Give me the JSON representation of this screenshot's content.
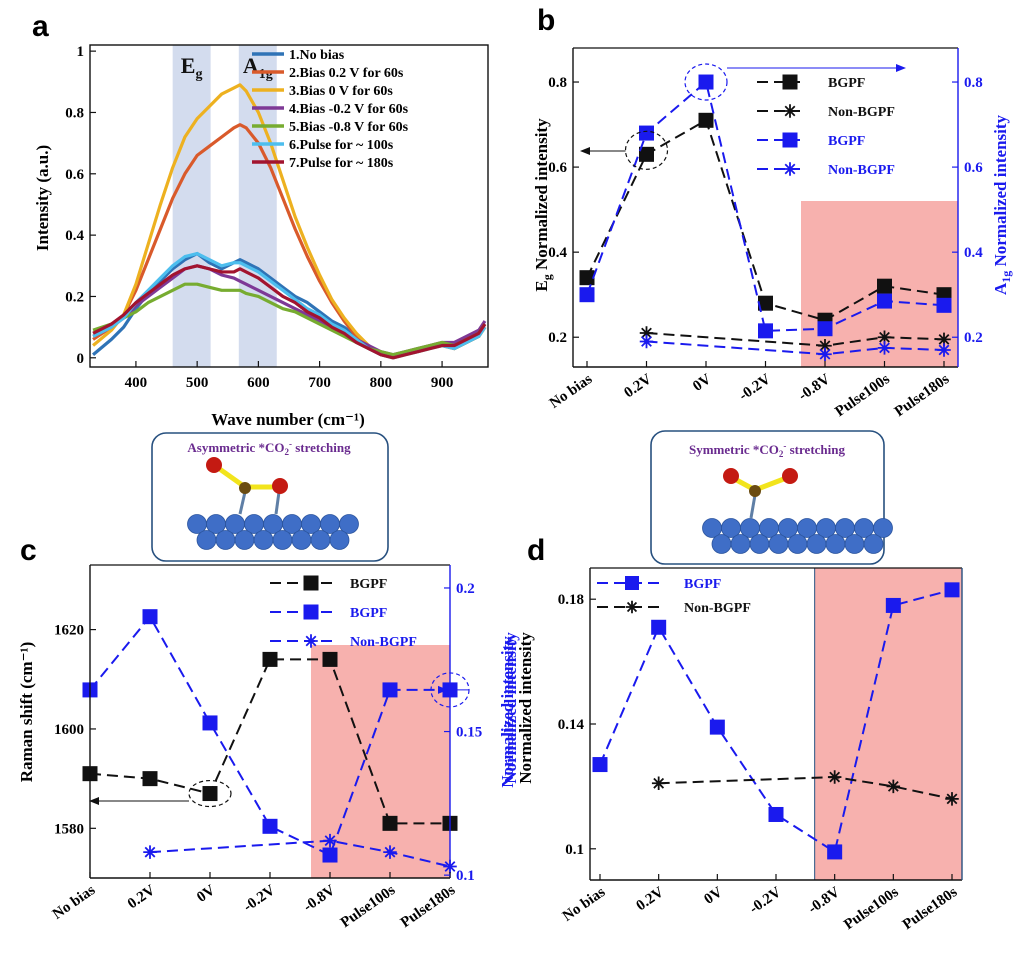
{
  "chart_data": [
    {
      "panel": "a",
      "type": "line",
      "xlabel": "Wave number (cm⁻¹)",
      "ylabel": "Intensity (a.u.)",
      "xlim": [
        325,
        975
      ],
      "ylim": [
        -0.03,
        1.02
      ],
      "xticks": [
        400,
        500,
        600,
        700,
        800,
        900
      ],
      "yticks": [
        0,
        0.2,
        0.4,
        0.6,
        0.8,
        1
      ],
      "bands": [
        {
          "label": "E",
          "sub": "g",
          "from": 460,
          "to": 522
        },
        {
          "label": "A",
          "sub": "1g",
          "from": 568,
          "to": 630
        }
      ],
      "band_color": "#d3dcee",
      "x": [
        330,
        360,
        380,
        400,
        420,
        440,
        460,
        480,
        500,
        520,
        540,
        560,
        570,
        580,
        600,
        620,
        640,
        660,
        680,
        700,
        720,
        740,
        760,
        780,
        800,
        820,
        840,
        860,
        880,
        900,
        920,
        940,
        960,
        970
      ],
      "series": [
        {
          "name": "1.No bias",
          "color": "#2f73b6",
          "values": [
            0.01,
            0.06,
            0.1,
            0.16,
            0.21,
            0.25,
            0.29,
            0.32,
            0.34,
            0.31,
            0.29,
            0.31,
            0.32,
            0.31,
            0.29,
            0.26,
            0.23,
            0.2,
            0.18,
            0.15,
            0.12,
            0.1,
            0.07,
            0.04,
            0.01,
            0.0,
            0.01,
            0.02,
            0.03,
            0.04,
            0.03,
            0.05,
            0.07,
            0.1
          ]
        },
        {
          "name": "2.Bias 0.2 V for 60s",
          "color": "#d95a2b",
          "values": [
            0.06,
            0.1,
            0.14,
            0.22,
            0.32,
            0.42,
            0.52,
            0.6,
            0.66,
            0.69,
            0.72,
            0.75,
            0.76,
            0.75,
            0.7,
            0.62,
            0.52,
            0.42,
            0.33,
            0.25,
            0.18,
            0.12,
            0.07,
            0.03,
            0.01,
            0.0,
            0.01,
            0.02,
            0.03,
            0.04,
            0.03,
            0.05,
            0.07,
            0.1
          ]
        },
        {
          "name": "3.Bias 0 V for 60s",
          "color": "#edb120",
          "values": [
            0.04,
            0.09,
            0.14,
            0.24,
            0.37,
            0.5,
            0.62,
            0.72,
            0.78,
            0.82,
            0.86,
            0.88,
            0.89,
            0.87,
            0.8,
            0.7,
            0.58,
            0.46,
            0.36,
            0.27,
            0.19,
            0.13,
            0.08,
            0.04,
            0.01,
            0.0,
            0.01,
            0.02,
            0.03,
            0.04,
            0.03,
            0.05,
            0.07,
            0.1
          ]
        },
        {
          "name": "4.Bias -0.2 V for 60s",
          "color": "#7e3996",
          "values": [
            0.07,
            0.1,
            0.13,
            0.17,
            0.2,
            0.23,
            0.26,
            0.29,
            0.3,
            0.29,
            0.27,
            0.26,
            0.25,
            0.24,
            0.22,
            0.2,
            0.18,
            0.16,
            0.14,
            0.12,
            0.1,
            0.08,
            0.06,
            0.04,
            0.02,
            0.01,
            0.02,
            0.03,
            0.04,
            0.05,
            0.05,
            0.07,
            0.09,
            0.12
          ]
        },
        {
          "name": "5.Bias -0.8 V for 60s",
          "color": "#77ac30",
          "values": [
            0.09,
            0.11,
            0.13,
            0.15,
            0.18,
            0.2,
            0.22,
            0.24,
            0.24,
            0.23,
            0.22,
            0.22,
            0.22,
            0.21,
            0.2,
            0.18,
            0.16,
            0.15,
            0.13,
            0.11,
            0.09,
            0.07,
            0.05,
            0.03,
            0.02,
            0.01,
            0.02,
            0.03,
            0.04,
            0.05,
            0.04,
            0.06,
            0.08,
            0.11
          ]
        },
        {
          "name": "6.Pulse for ~ 100s",
          "color": "#4dbeee",
          "values": [
            0.07,
            0.1,
            0.13,
            0.18,
            0.22,
            0.26,
            0.3,
            0.33,
            0.34,
            0.32,
            0.3,
            0.31,
            0.31,
            0.3,
            0.28,
            0.25,
            0.22,
            0.19,
            0.16,
            0.14,
            0.11,
            0.09,
            0.06,
            0.03,
            0.01,
            0.0,
            0.01,
            0.02,
            0.03,
            0.04,
            0.03,
            0.05,
            0.07,
            0.1
          ]
        },
        {
          "name": "7.Pulse for ~ 180s",
          "color": "#a2142f",
          "values": [
            0.08,
            0.11,
            0.14,
            0.18,
            0.21,
            0.24,
            0.27,
            0.29,
            0.3,
            0.29,
            0.28,
            0.28,
            0.29,
            0.28,
            0.26,
            0.23,
            0.2,
            0.18,
            0.15,
            0.13,
            0.1,
            0.08,
            0.05,
            0.03,
            0.01,
            0.0,
            0.01,
            0.02,
            0.03,
            0.04,
            0.04,
            0.06,
            0.08,
            0.11
          ]
        }
      ]
    },
    {
      "panel": "b",
      "type": "line",
      "categories": [
        "No bias",
        "0.2V",
        "0V",
        "-0.2V",
        "-0.8V",
        "Pulse100s",
        "Pulse180s"
      ],
      "ylabel_left": "E",
      "ylabel_left_sub": "g",
      "ylabel_left_rest": " Normalized intensity",
      "ylabel_right": "A",
      "ylabel_right_sub": "1g",
      "ylabel_right_rest": " Normalized intensity",
      "ylim_left": [
        0.13,
        0.88
      ],
      "ylim_right": [
        0.13,
        0.88
      ],
      "yticks_left": [
        0.2,
        0.4,
        0.6,
        0.8
      ],
      "yticks_right": [
        0.2,
        0.4,
        0.6,
        0.8
      ],
      "shaded_from": "-0.8V",
      "shade_color": "#f7b1ae",
      "series": [
        {
          "name": "BGPF",
          "axis": "left",
          "color": "#111111",
          "marker": "square",
          "values": [
            0.34,
            0.63,
            0.71,
            0.28,
            0.24,
            0.32,
            0.3
          ]
        },
        {
          "name": "Non-BGPF",
          "axis": "left",
          "color": "#111111",
          "marker": "star",
          "values": [
            null,
            0.21,
            null,
            null,
            0.18,
            0.2,
            0.195
          ]
        },
        {
          "name": "BGPF",
          "axis": "right",
          "color": "#1a1aee",
          "marker": "square",
          "values": [
            0.3,
            0.68,
            0.8,
            0.215,
            0.22,
            0.285,
            0.275
          ]
        },
        {
          "name": "Non-BGPF",
          "axis": "right",
          "color": "#1a1aee",
          "marker": "star",
          "values": [
            null,
            0.19,
            null,
            null,
            0.16,
            0.175,
            0.17
          ]
        }
      ]
    },
    {
      "panel": "c",
      "type": "line",
      "categories": [
        "No bias",
        "0.2V",
        "0V",
        "-0.2V",
        "-0.8V",
        "Pulse100s",
        "Pulse180s"
      ],
      "ylabel_left": "Raman shift (cm⁻¹)",
      "ylabel_right": "Normalized intensity",
      "ylim_left": [
        1570,
        1633
      ],
      "ylim_right": [
        0.099,
        0.208
      ],
      "yticks_left": [
        1580,
        1600,
        1620
      ],
      "yticks_right": [
        0.1,
        0.15,
        0.2
      ],
      "shaded_from": "-0.8V",
      "shade_color": "#f7b1ae",
      "series": [
        {
          "name": "BGPF",
          "axis": "left",
          "color": "#111111",
          "marker": "square",
          "values": [
            1591,
            1590,
            1587,
            1614,
            1614,
            1581,
            1581
          ]
        },
        {
          "name": "BGPF",
          "axis": "right",
          "color": "#1a1aee",
          "marker": "square",
          "values": [
            0.1645,
            0.19,
            0.153,
            0.117,
            0.107,
            0.1645,
            0.1645
          ]
        },
        {
          "name": "Non-BGPF",
          "axis": "right",
          "color": "#1a1aee",
          "marker": "star",
          "values": [
            null,
            0.108,
            null,
            null,
            0.112,
            0.108,
            0.103
          ]
        }
      ]
    },
    {
      "panel": "d",
      "type": "line",
      "categories": [
        "No bias",
        "0.2V",
        "0V",
        "-0.2V",
        "-0.8V",
        "Pulse100s",
        "Pulse180s"
      ],
      "ylabel_left_top": "Normalized intensity",
      "ylabel_left_bottom": "Normalized intensity",
      "ylim": [
        0.09,
        0.19
      ],
      "yticks": [
        0.1,
        0.14,
        0.18
      ],
      "shaded_from": "-0.8V",
      "shade_color": "#f7b1ae",
      "series": [
        {
          "name": "BGPF",
          "color": "#1a1aee",
          "marker": "square",
          "values": [
            0.127,
            0.171,
            0.139,
            0.111,
            0.099,
            0.178,
            0.183
          ]
        },
        {
          "name": "Non-BGPF",
          "color": "#111111",
          "marker": "star",
          "values": [
            null,
            0.121,
            null,
            null,
            0.123,
            0.12,
            0.116
          ]
        }
      ]
    }
  ],
  "panels": {
    "a": "a",
    "b": "b",
    "c": "c",
    "d": "d"
  },
  "insets": {
    "asym": {
      "pre": "Asymmetric *CO",
      "sub": "2",
      "sup": "-",
      "post": " stretching",
      "color": "#6a2b8f"
    },
    "sym": {
      "pre": "Symmetric *CO",
      "sub": "2",
      "sup": "-",
      "post": " stretching",
      "color": "#6a2b8f"
    }
  },
  "colors": {
    "black": "#111111",
    "blue": "#1a1aee",
    "atom_blue": "#3f6ec7",
    "oxygen": "#c41a12",
    "carbon": "#6b4c12",
    "bond": "#f2e41c",
    "inset_border": "#27507f"
  }
}
